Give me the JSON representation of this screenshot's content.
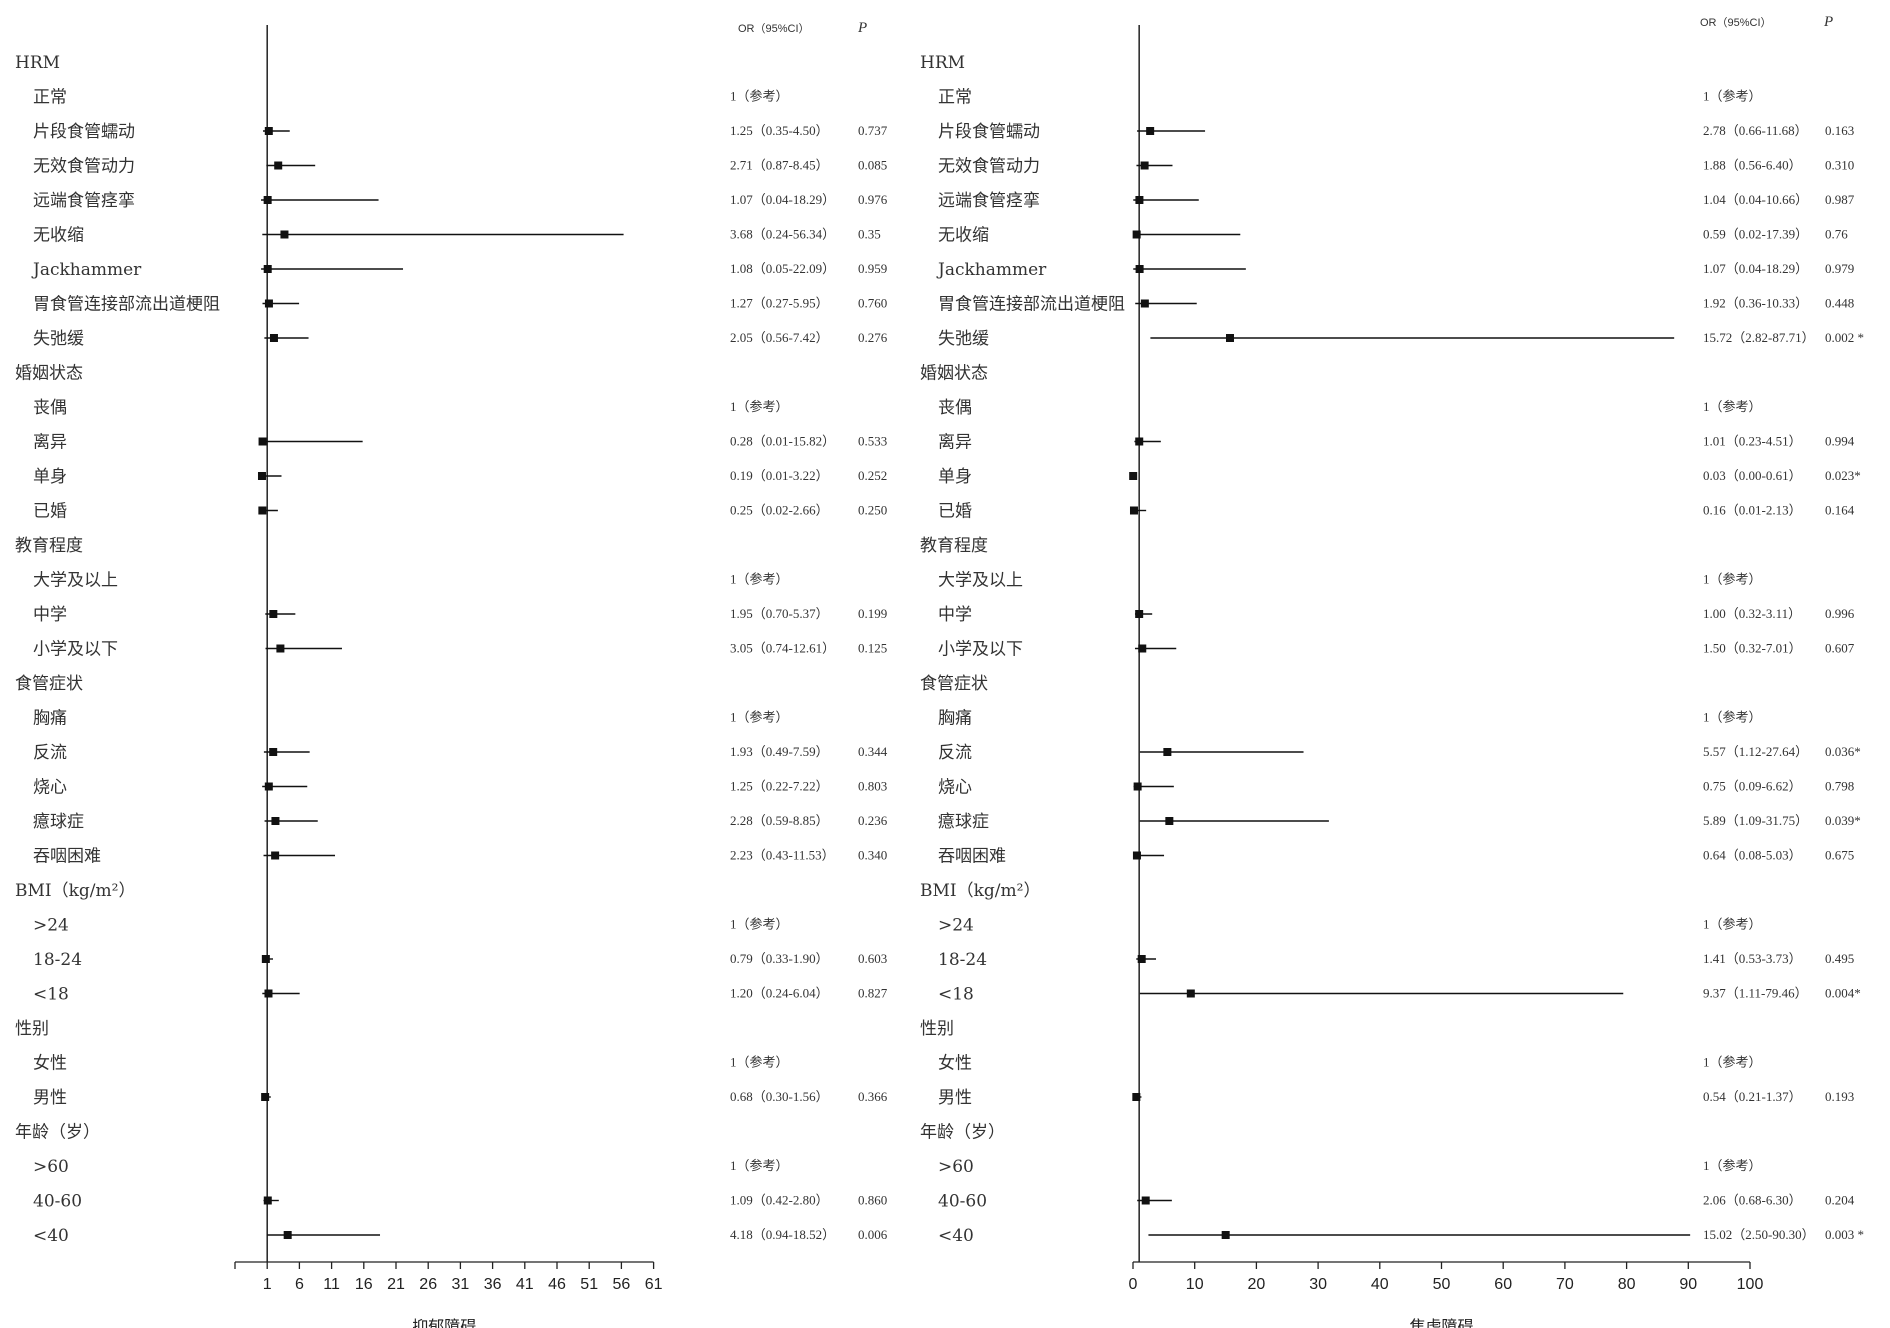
{
  "chart_data": [
    {
      "type": "forest",
      "xlabel": "抑郁障碍",
      "x_ticks": [
        "1",
        "6",
        "11",
        "16",
        "21",
        "26",
        "31",
        "36",
        "41",
        "46",
        "51",
        "56",
        "61"
      ],
      "xlim": [
        -4,
        61
      ],
      "reference_line": 1,
      "header": {
        "or_label": "OR（95%CI）",
        "p_label": "P"
      },
      "rows": [
        {
          "label": "HRM",
          "group": true
        },
        {
          "label": "正常",
          "or_text": "1（参考）",
          "p": ""
        },
        {
          "label": "片段食管蠕动",
          "or": 1.25,
          "lo": 0.35,
          "hi": 4.5,
          "or_text": "1.25（0.35-4.50）",
          "p": "0.737"
        },
        {
          "label": "无效食管动力",
          "or": 2.71,
          "lo": 0.87,
          "hi": 8.45,
          "or_text": "2.71（0.87-8.45）",
          "p": "0.085"
        },
        {
          "label": "远端食管痉挛",
          "or": 1.07,
          "lo": 0.04,
          "hi": 18.29,
          "or_text": "1.07（0.04-18.29）",
          "p": "0.976"
        },
        {
          "label": "无收缩",
          "or": 3.68,
          "lo": 0.24,
          "hi": 56.34,
          "or_text": "3.68（0.24-56.34）",
          "p": "0.35"
        },
        {
          "label": "Jackhammer",
          "or": 1.08,
          "lo": 0.05,
          "hi": 22.09,
          "or_text": "1.08（0.05-22.09）",
          "p": "0.959"
        },
        {
          "label": "胃食管连接部流出道梗阻",
          "or": 1.27,
          "lo": 0.27,
          "hi": 5.95,
          "or_text": "1.27（0.27-5.95）",
          "p": "0.760"
        },
        {
          "label": "失弛缓",
          "or": 2.05,
          "lo": 0.56,
          "hi": 7.42,
          "or_text": "2.05（0.56-7.42）",
          "p": "0.276"
        },
        {
          "label": "婚姻状态",
          "group": true
        },
        {
          "label": "丧偶",
          "or_text": "1（参考）",
          "p": ""
        },
        {
          "label": "离异",
          "or": 0.28,
          "lo": 0.01,
          "hi": 15.82,
          "or_text": "0.28（0.01-15.82）",
          "p": "0.533"
        },
        {
          "label": "单身",
          "or": 0.19,
          "lo": 0.01,
          "hi": 3.22,
          "or_text": "0.19（0.01-3.22）",
          "p": "0.252"
        },
        {
          "label": "已婚",
          "or": 0.25,
          "lo": 0.02,
          "hi": 2.66,
          "or_text": "0.25（0.02-2.66）",
          "p": "0.250"
        },
        {
          "label": "教育程度",
          "group": true
        },
        {
          "label": "大学及以上",
          "or_text": "1（参考）",
          "p": ""
        },
        {
          "label": "中学",
          "or": 1.95,
          "lo": 0.7,
          "hi": 5.37,
          "or_text": "1.95（0.70-5.37）",
          "p": "0.199"
        },
        {
          "label": "小学及以下",
          "or": 3.05,
          "lo": 0.74,
          "hi": 12.61,
          "or_text": "3.05（0.74-12.61）",
          "p": "0.125"
        },
        {
          "label": "食管症状",
          "group": true
        },
        {
          "label": "胸痛",
          "or_text": "1（参考）",
          "p": ""
        },
        {
          "label": "反流",
          "or": 1.93,
          "lo": 0.49,
          "hi": 7.59,
          "or_text": "1.93（0.49-7.59）",
          "p": "0.344"
        },
        {
          "label": "烧心",
          "or": 1.25,
          "lo": 0.22,
          "hi": 7.22,
          "or_text": "1.25（0.22-7.22）",
          "p": "0.803"
        },
        {
          "label": "癔球症",
          "or": 2.28,
          "lo": 0.59,
          "hi": 8.85,
          "or_text": "2.28（0.59-8.85）",
          "p": "0.236"
        },
        {
          "label": "吞咽困难",
          "or": 2.23,
          "lo": 0.43,
          "hi": 11.53,
          "or_text": "2.23（0.43-11.53）",
          "p": "0.340"
        },
        {
          "label": "BMI（kg/m²）",
          "group": true
        },
        {
          "label": ">24",
          "or_text": "1（参考）",
          "p": ""
        },
        {
          "label": "18-24",
          "or": 0.79,
          "lo": 0.33,
          "hi": 1.9,
          "or_text": "0.79（0.33-1.90）",
          "p": "0.603"
        },
        {
          "label": "<18",
          "or": 1.2,
          "lo": 0.24,
          "hi": 6.04,
          "or_text": "1.20（0.24-6.04）",
          "p": "0.827"
        },
        {
          "label": "性别",
          "group": true
        },
        {
          "label": "女性",
          "or_text": "1（参考）",
          "p": ""
        },
        {
          "label": "男性",
          "or": 0.68,
          "lo": 0.3,
          "hi": 1.56,
          "or_text": "0.68（0.30-1.56）",
          "p": "0.366"
        },
        {
          "label": "年龄（岁）",
          "group": true
        },
        {
          "label": ">60",
          "or_text": "1（参考）",
          "p": ""
        },
        {
          "label": "40-60",
          "or": 1.09,
          "lo": 0.42,
          "hi": 2.8,
          "or_text": "1.09（0.42-2.80）",
          "p": "0.860"
        },
        {
          "label": "<40",
          "or": 4.18,
          "lo": 0.94,
          "hi": 18.52,
          "or_text": "4.18（0.94-18.52）",
          "p": "0.006"
        }
      ]
    },
    {
      "type": "forest",
      "xlabel": "焦虑障碍",
      "x_ticks": [
        "0",
        "10",
        "20",
        "30",
        "40",
        "50",
        "60",
        "70",
        "80",
        "90",
        "100"
      ],
      "xlim": [
        0,
        100
      ],
      "reference_line": 1,
      "header": {
        "or_label": "OR（95%CI）",
        "p_label": "P"
      },
      "rows": [
        {
          "label": "HRM",
          "group": true
        },
        {
          "label": "正常",
          "or_text": "1（参考）",
          "p": ""
        },
        {
          "label": "片段食管蠕动",
          "or": 2.78,
          "lo": 0.66,
          "hi": 11.68,
          "or_text": "2.78（0.66-11.68）",
          "p": "0.163"
        },
        {
          "label": "无效食管动力",
          "or": 1.88,
          "lo": 0.56,
          "hi": 6.4,
          "or_text": "1.88（0.56-6.40）",
          "p": "0.310"
        },
        {
          "label": "远端食管痉挛",
          "or": 1.04,
          "lo": 0.04,
          "hi": 10.66,
          "or_text": "1.04（0.04-10.66）",
          "p": "0.987"
        },
        {
          "label": "无收缩",
          "or": 0.59,
          "lo": 0.02,
          "hi": 17.39,
          "or_text": "0.59（0.02-17.39）",
          "p": "0.76"
        },
        {
          "label": "Jackhammer",
          "or": 1.07,
          "lo": 0.04,
          "hi": 18.29,
          "or_text": "1.07（0.04-18.29）",
          "p": "0.979"
        },
        {
          "label": "胃食管连接部流出道梗阻",
          "or": 1.92,
          "lo": 0.36,
          "hi": 10.33,
          "or_text": "1.92（0.36-10.33）",
          "p": "0.448"
        },
        {
          "label": "失弛缓",
          "or": 15.72,
          "lo": 2.82,
          "hi": 87.71,
          "or_text": "15.72（2.82-87.71）",
          "p": "0.002 *"
        },
        {
          "label": "婚姻状态",
          "group": true
        },
        {
          "label": "丧偶",
          "or_text": "1（参考）",
          "p": ""
        },
        {
          "label": "离异",
          "or": 1.01,
          "lo": 0.23,
          "hi": 4.51,
          "or_text": "1.01（0.23-4.51）",
          "p": "0.994"
        },
        {
          "label": "单身",
          "or": 0.03,
          "lo": 0.0,
          "hi": 0.61,
          "or_text": "0.03（0.00-0.61）",
          "p": "0.023*"
        },
        {
          "label": "已婚",
          "or": 0.16,
          "lo": 0.01,
          "hi": 2.13,
          "or_text": "0.16（0.01-2.13）",
          "p": "0.164"
        },
        {
          "label": "教育程度",
          "group": true
        },
        {
          "label": "大学及以上",
          "or_text": "1（参考）",
          "p": ""
        },
        {
          "label": "中学",
          "or": 1.0,
          "lo": 0.32,
          "hi": 3.11,
          "or_text": "1.00（0.32-3.11）",
          "p": "0.996"
        },
        {
          "label": "小学及以下",
          "or": 1.5,
          "lo": 0.32,
          "hi": 7.01,
          "or_text": "1.50（0.32-7.01）",
          "p": "0.607"
        },
        {
          "label": "食管症状",
          "group": true
        },
        {
          "label": "胸痛",
          "or_text": "1（参考）",
          "p": ""
        },
        {
          "label": "反流",
          "or": 5.57,
          "lo": 1.12,
          "hi": 27.64,
          "or_text": "5.57（1.12-27.64）",
          "p": "0.036*"
        },
        {
          "label": "烧心",
          "or": 0.75,
          "lo": 0.09,
          "hi": 6.62,
          "or_text": "0.75（0.09-6.62）",
          "p": "0.798"
        },
        {
          "label": "癔球症",
          "or": 5.89,
          "lo": 1.09,
          "hi": 31.75,
          "or_text": "5.89（1.09-31.75）",
          "p": "0.039*"
        },
        {
          "label": "吞咽困难",
          "or": 0.64,
          "lo": 0.08,
          "hi": 5.03,
          "or_text": "0.64（0.08-5.03）",
          "p": "0.675"
        },
        {
          "label": "BMI（kg/m²）",
          "group": true
        },
        {
          "label": ">24",
          "or_text": "1（参考）",
          "p": ""
        },
        {
          "label": "18-24",
          "or": 1.41,
          "lo": 0.53,
          "hi": 3.73,
          "or_text": "1.41（0.53-3.73）",
          "p": "0.495"
        },
        {
          "label": "<18",
          "or": 9.37,
          "lo": 1.11,
          "hi": 79.46,
          "or_text": "9.37（1.11-79.46）",
          "p": "0.004*"
        },
        {
          "label": "性别",
          "group": true
        },
        {
          "label": "女性",
          "or_text": "1（参考）",
          "p": ""
        },
        {
          "label": "男性",
          "or": 0.54,
          "lo": 0.21,
          "hi": 1.37,
          "or_text": "0.54（0.21-1.37）",
          "p": "0.193"
        },
        {
          "label": "年龄（岁）",
          "group": true
        },
        {
          "label": ">60",
          "or_text": "1（参考）",
          "p": ""
        },
        {
          "label": "40-60",
          "or": 2.06,
          "lo": 0.68,
          "hi": 6.3,
          "or_text": "2.06（0.68-6.30）",
          "p": "0.204"
        },
        {
          "label": "<40",
          "or": 15.02,
          "lo": 2.5,
          "hi": 90.3,
          "or_text": "15.02（2.50-90.30）",
          "p": "0.003 *"
        }
      ]
    }
  ]
}
